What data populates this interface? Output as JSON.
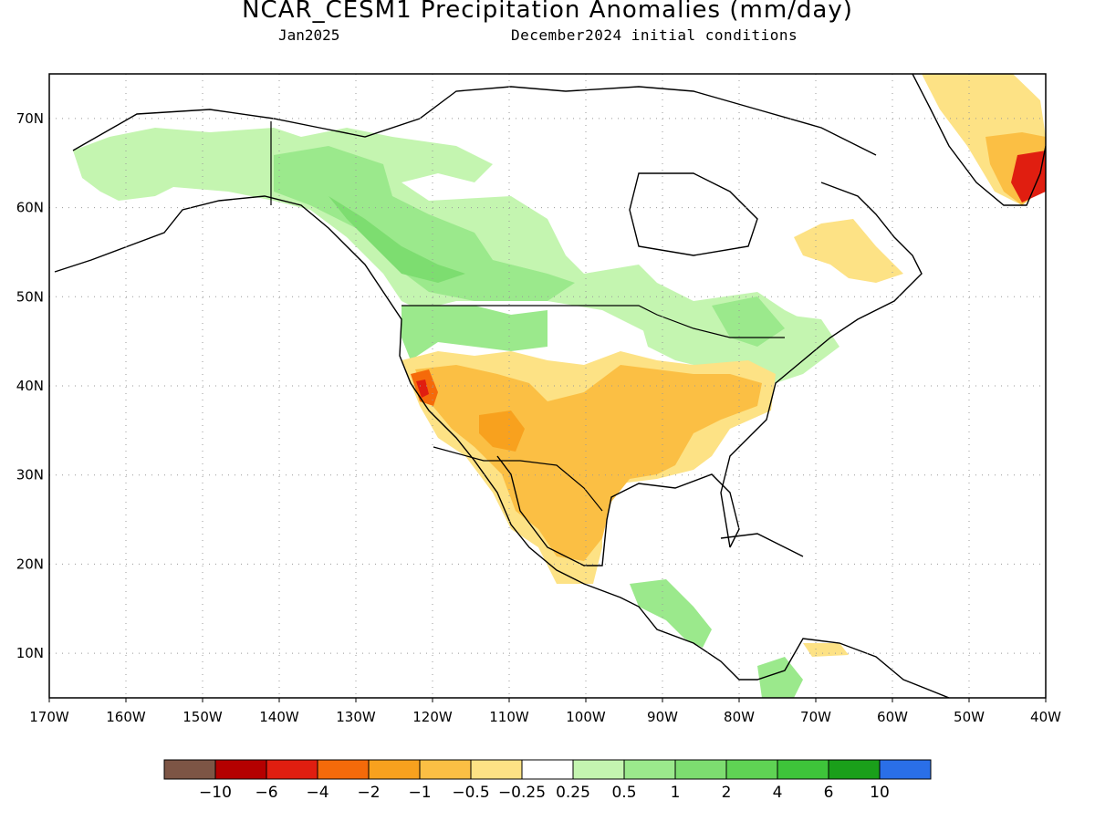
{
  "header": {
    "title": "NCAR_CESM1 Precipitation Anomalies (mm/day)",
    "valid_month": "Jan2025",
    "init_conditions": "December2024 initial conditions"
  },
  "axes": {
    "lon_labels": [
      "170W",
      "160W",
      "150W",
      "140W",
      "130W",
      "120W",
      "110W",
      "100W",
      "90W",
      "80W",
      "70W",
      "60W",
      "50W",
      "40W"
    ],
    "lat_labels": [
      "70N",
      "60N",
      "50N",
      "40N",
      "30N",
      "20N",
      "10N"
    ],
    "lon_range": [
      -170,
      -40
    ],
    "lat_range": [
      5,
      75
    ]
  },
  "colorbar": {
    "labels": [
      "-10",
      "-6",
      "-4",
      "-2",
      "-1",
      "-0.5",
      "-0.25",
      "0.25",
      "0.5",
      "1",
      "2",
      "4",
      "6",
      "10"
    ],
    "colors": [
      "#7d5545",
      "#b40000",
      "#e01e10",
      "#f56a0a",
      "#f8a11e",
      "#fbbf44",
      "#fde285",
      "#ffffff",
      "#c4f5b0",
      "#9be98c",
      "#7ddd70",
      "#5fd354",
      "#3ec43a",
      "#1a9f1a",
      "#2a6fe8"
    ]
  },
  "map_style": {
    "grid": true,
    "coast_color": "#000000",
    "dry_colors": [
      "#fde285",
      "#fbbf44",
      "#f8a11e",
      "#f56a0a",
      "#e01e10"
    ],
    "wet_colors": [
      "#c4f5b0",
      "#9be98c",
      "#7ddd70"
    ]
  },
  "regions": [
    {
      "name": "Southwest US / Mexico",
      "category": "-0.5 to -1"
    },
    {
      "name": "California coast",
      "category": "-2 to -4"
    },
    {
      "name": "Southern Plains / Gulf states",
      "category": "-0.5 to -1"
    },
    {
      "name": "Pacific Northwest / Western Canada / Alaska",
      "category": "0.25 to 1"
    },
    {
      "name": "Great Lakes / Northeast",
      "category": "0.25 to 1"
    },
    {
      "name": "Southeast Greenland",
      "category": "-0.25 to -4"
    },
    {
      "name": "Labrador",
      "category": "-0.25 to -0.5"
    },
    {
      "name": "Central America / Colombia",
      "category": "0.25 to 1"
    }
  ]
}
